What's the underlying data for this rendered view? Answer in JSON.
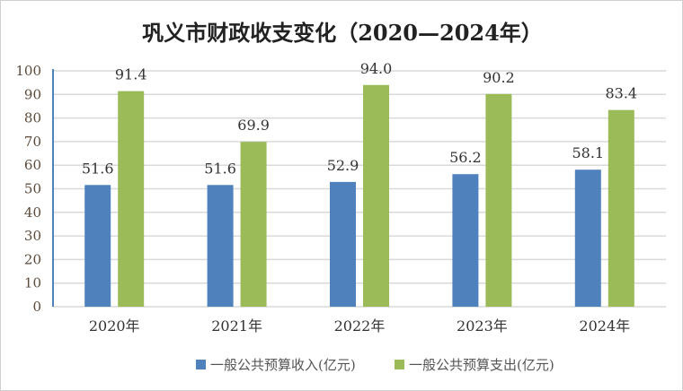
{
  "chart_data": {
    "type": "bar",
    "title": "巩义市财政收支变化（2020—2024年）",
    "categories": [
      "2020年",
      "2021年",
      "2022年",
      "2023年",
      "2024年"
    ],
    "series": [
      {
        "name": "一般公共预算收入(亿元)",
        "color": "#4f81bd",
        "values": [
          51.6,
          51.6,
          52.9,
          56.2,
          58.1
        ]
      },
      {
        "name": "一般公共预算支出(亿元)",
        "color": "#9bbb59",
        "values": [
          91.4,
          69.9,
          94.0,
          90.2,
          83.4
        ]
      }
    ],
    "ylim": [
      0,
      100
    ],
    "yticks": [
      0,
      10,
      20,
      30,
      40,
      50,
      60,
      70,
      80,
      90,
      100
    ],
    "grid": true,
    "legend": "bottom",
    "xlabel": "",
    "ylabel": ""
  }
}
